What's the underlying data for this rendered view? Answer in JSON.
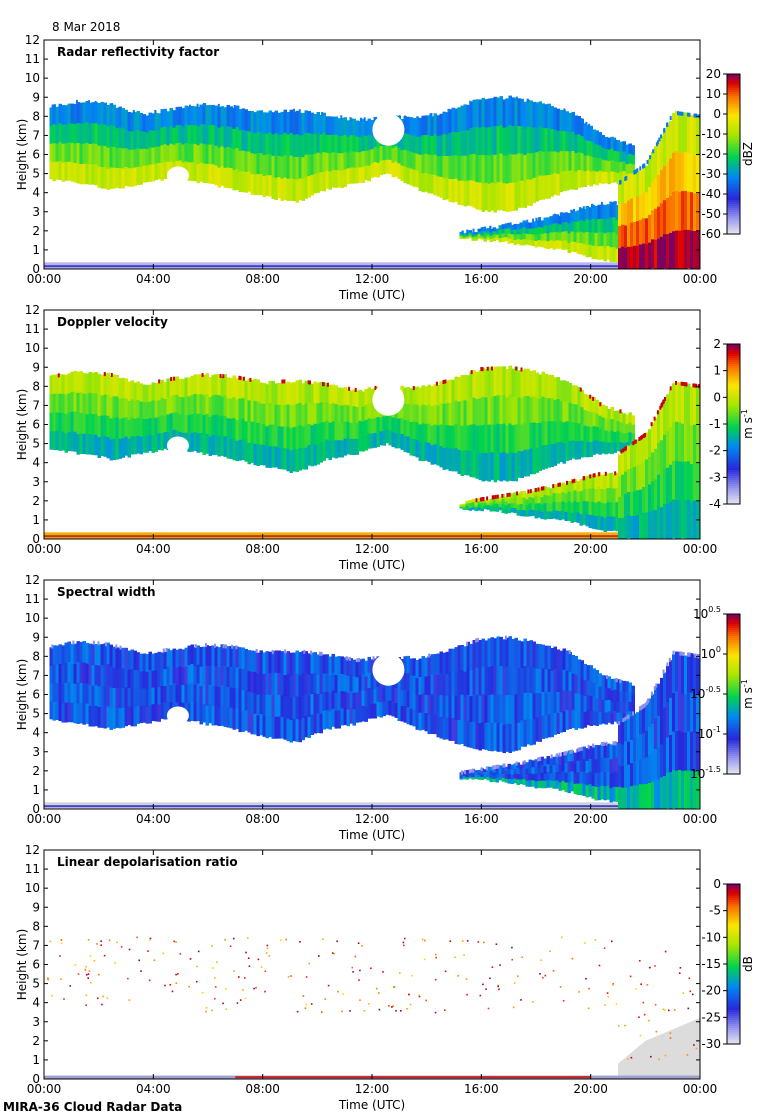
{
  "figure": {
    "date": "8 Mar 2018",
    "footer": "MIRA-36 Cloud Radar Data"
  },
  "chart_data": [
    {
      "type": "heatmap",
      "title": "Radar reflectivity factor",
      "xlabel": "Time (UTC)",
      "ylabel": "Height (km)",
      "x_ticks": [
        "00:00",
        "04:00",
        "08:00",
        "12:00",
        "16:00",
        "20:00",
        "00:00"
      ],
      "y_ticks": [
        "0",
        "1",
        "2",
        "3",
        "4",
        "5",
        "6",
        "7",
        "8",
        "9",
        "10",
        "11",
        "12"
      ],
      "xlim_hours": [
        0,
        24
      ],
      "ylim_km": [
        0,
        12
      ],
      "colorbar": {
        "label": "dBZ",
        "ticks": [
          "20",
          "10",
          "0",
          "-10",
          "-20",
          "-30",
          "-40",
          "-50",
          "-60"
        ],
        "range": [
          -60,
          20
        ]
      },
      "cloud_layers": [
        {
          "name": "upper",
          "start_h": 0.2,
          "end_h": 21.5,
          "base_km": [
            4.7,
            4.5,
            4.2,
            4.5,
            4.8,
            4.5,
            4.2,
            3.8,
            3.5,
            4.2,
            4.5,
            5.0,
            4.2,
            3.6,
            3.1,
            3.0,
            3.6,
            4.2,
            4.5,
            4.6
          ],
          "top_km": [
            8.5,
            8.8,
            8.6,
            8.1,
            8.4,
            8.6,
            8.5,
            8.2,
            8.3,
            8.1,
            7.8,
            8.0,
            7.9,
            8.3,
            8.9,
            9.0,
            8.7,
            8.2,
            7.0,
            6.5
          ]
        },
        {
          "name": "lower",
          "start_h": 15.2,
          "end_h": 21.5,
          "base_km": [
            1.6,
            1.5,
            1.2,
            1.0,
            0.5,
            0.3
          ],
          "top_km": [
            1.9,
            2.2,
            2.5,
            2.9,
            3.4,
            3.5
          ]
        },
        {
          "name": "precip",
          "start_h": 21.0,
          "end_h": 24.0,
          "base_km": [
            0,
            0,
            0,
            0
          ],
          "top_km": [
            4.5,
            5.5,
            8.2,
            8.0
          ]
        }
      ],
      "value_range": [
        -45,
        15
      ]
    },
    {
      "type": "heatmap",
      "title": "Doppler velocity",
      "xlabel": "Time (UTC)",
      "ylabel": "Height (km)",
      "x_ticks": [
        "00:00",
        "04:00",
        "08:00",
        "12:00",
        "16:00",
        "20:00",
        "00:00"
      ],
      "y_ticks": [
        "0",
        "1",
        "2",
        "3",
        "4",
        "5",
        "6",
        "7",
        "8",
        "9",
        "10",
        "11",
        "12"
      ],
      "xlim_hours": [
        0,
        24
      ],
      "ylim_km": [
        0,
        12
      ],
      "colorbar": {
        "label": "m s-1",
        "ticks": [
          "2",
          "1",
          "0",
          "-1",
          "-2",
          "-3",
          "-4"
        ],
        "range": [
          -4,
          2
        ]
      },
      "value_range": [
        -2.5,
        0.3
      ]
    },
    {
      "type": "heatmap",
      "title": "Spectral width",
      "xlabel": "Time (UTC)",
      "ylabel": "Height (km)",
      "x_ticks": [
        "00:00",
        "04:00",
        "08:00",
        "12:00",
        "16:00",
        "20:00",
        "00:00"
      ],
      "y_ticks": [
        "0",
        "1",
        "2",
        "3",
        "4",
        "5",
        "6",
        "7",
        "8",
        "9",
        "10",
        "11",
        "12"
      ],
      "xlim_hours": [
        0,
        24
      ],
      "ylim_km": [
        0,
        12
      ],
      "colorbar": {
        "label": "m s-1",
        "ticks": [
          "10^0.5",
          "10^0",
          "10^-0.5",
          "10^-1",
          "10^-1.5"
        ],
        "range": [
          -1.5,
          0.5
        ]
      },
      "value_range": [
        -1.5,
        -0.4
      ]
    },
    {
      "type": "heatmap",
      "title": "Linear depolarisation ratio",
      "xlabel": "Time (UTC)",
      "ylabel": "Height (km)",
      "x_ticks": [
        "00:00",
        "04:00",
        "08:00",
        "12:00",
        "16:00",
        "20:00",
        "00:00"
      ],
      "y_ticks": [
        "0",
        "1",
        "2",
        "3",
        "4",
        "5",
        "6",
        "7",
        "8",
        "9",
        "10",
        "11",
        "12"
      ],
      "xlim_hours": [
        0,
        24
      ],
      "ylim_km": [
        0,
        12
      ],
      "colorbar": {
        "label": "dB",
        "ticks": [
          "0",
          "-5",
          "-10",
          "-15",
          "-20",
          "-25",
          "-30"
        ],
        "range": [
          -30,
          0
        ]
      },
      "value_range": [
        -5,
        0
      ]
    }
  ]
}
